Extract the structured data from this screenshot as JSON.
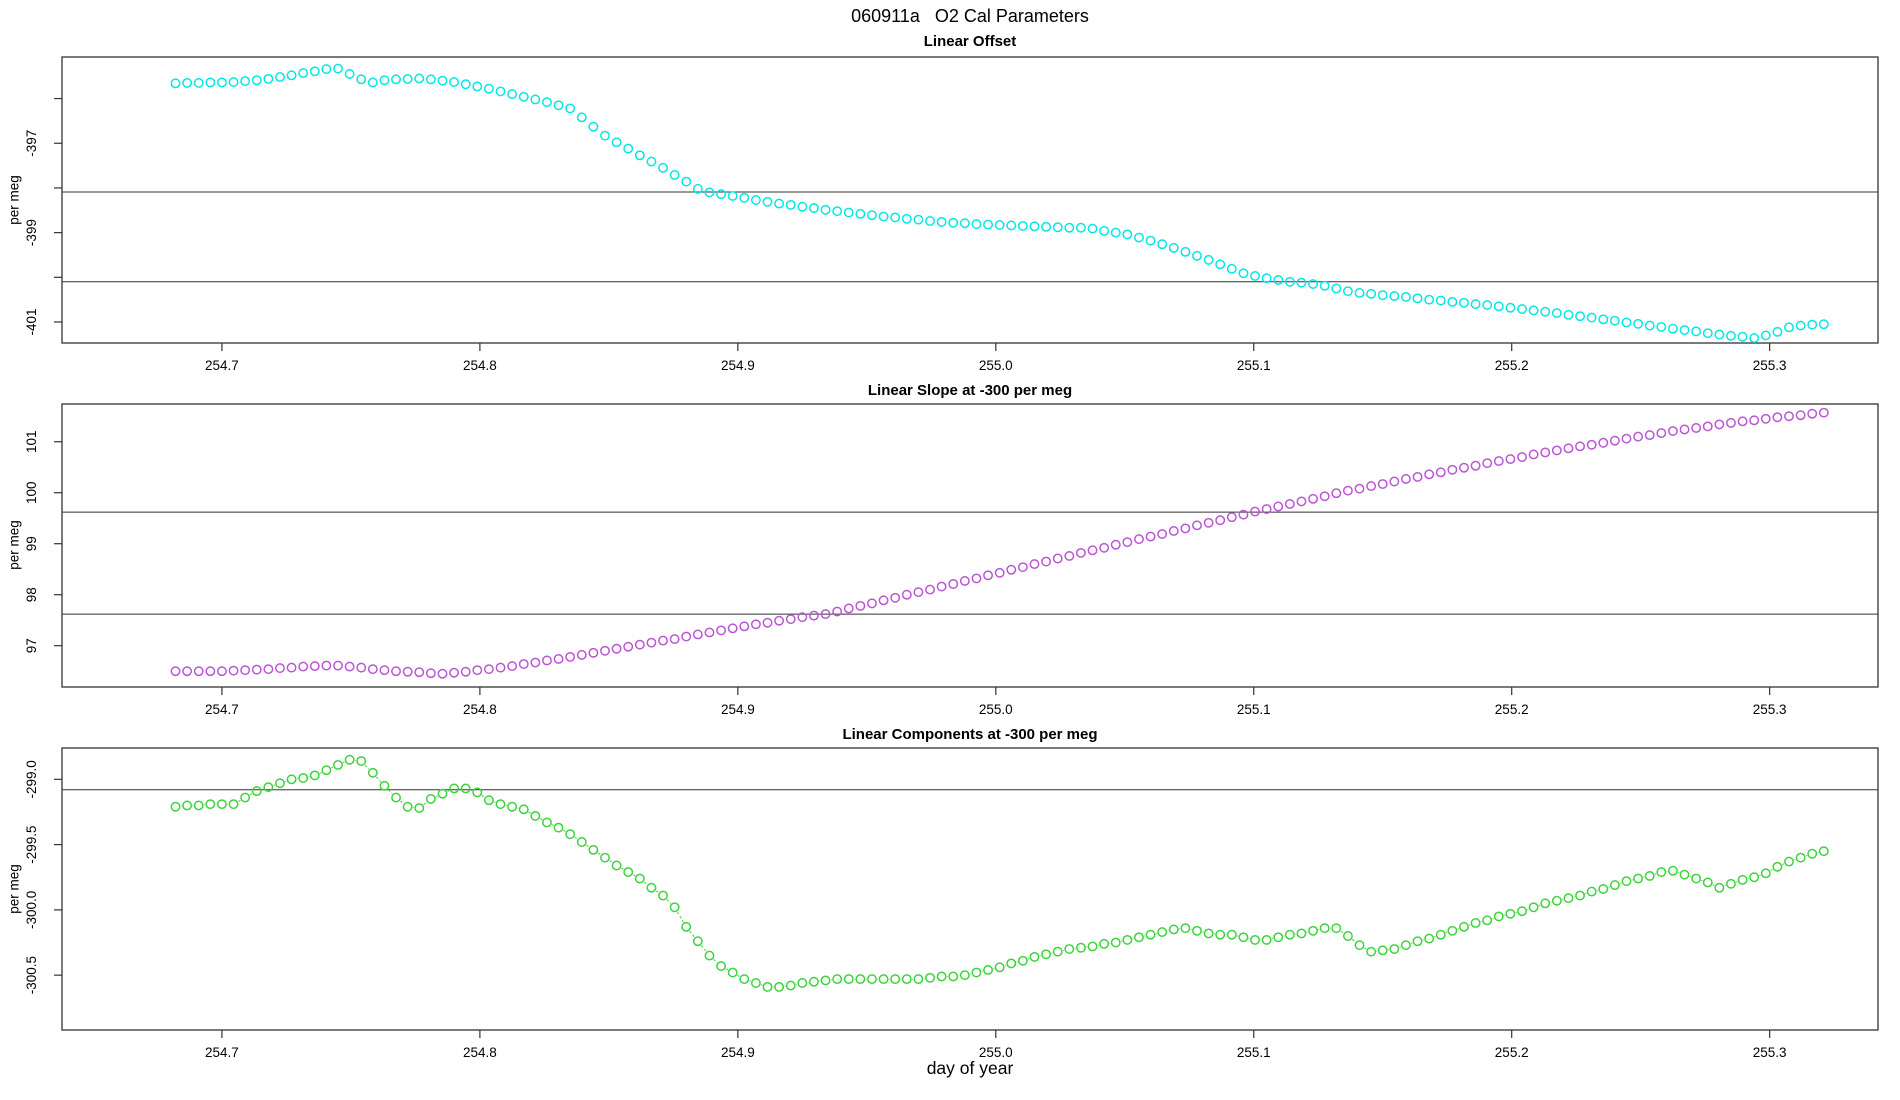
{
  "page": {
    "title": "060911a   O2 Cal Parameters"
  },
  "chart_data": {
    "type": "scatter",
    "layout": "three-stacked-panels",
    "xlabel": "day of year",
    "x_ticks": [
      254.7,
      254.8,
      254.9,
      255.0,
      255.1,
      255.2,
      255.3
    ],
    "x_tick_labels": [
      "254.7",
      "254.8",
      "254.9",
      "255.0",
      "255.1",
      "255.2",
      "255.3"
    ],
    "xlim": [
      254.638,
      255.342
    ],
    "x": [
      254.682,
      254.6865,
      254.691,
      254.6955,
      254.7,
      254.7045,
      254.709,
      254.7135,
      254.718,
      254.7225,
      254.727,
      254.7315,
      254.736,
      254.7405,
      254.745,
      254.7495,
      254.754,
      254.7585,
      254.763,
      254.7675,
      254.772,
      254.7765,
      254.781,
      254.7855,
      254.79,
      254.7945,
      254.799,
      254.8035,
      254.808,
      254.8125,
      254.817,
      254.8215,
      254.826,
      254.8305,
      254.835,
      254.8395,
      254.844,
      254.8485,
      254.853,
      254.8575,
      254.862,
      254.8665,
      254.871,
      254.8755,
      254.88,
      254.8845,
      254.889,
      254.8935,
      254.898,
      254.9025,
      254.907,
      254.9115,
      254.916,
      254.9205,
      254.925,
      254.9295,
      254.934,
      254.9385,
      254.943,
      254.9475,
      254.952,
      254.9565,
      254.961,
      254.9655,
      254.97,
      254.9745,
      254.979,
      254.9835,
      254.988,
      254.9925,
      254.997,
      255.0015,
      255.006,
      255.0105,
      255.015,
      255.0195,
      255.024,
      255.0285,
      255.033,
      255.0375,
      255.042,
      255.0465,
      255.051,
      255.0555,
      255.06,
      255.0645,
      255.069,
      255.0735,
      255.078,
      255.0825,
      255.087,
      255.0915,
      255.096,
      255.1005,
      255.105,
      255.1095,
      255.114,
      255.1185,
      255.123,
      255.1275,
      255.132,
      255.1365,
      255.141,
      255.1455,
      255.15,
      255.1545,
      255.159,
      255.1635,
      255.168,
      255.1725,
      255.177,
      255.1815,
      255.186,
      255.1905,
      255.195,
      255.1995,
      255.204,
      255.2085,
      255.213,
      255.2175,
      255.222,
      255.2265,
      255.231,
      255.2355,
      255.24,
      255.2445,
      255.249,
      255.2535,
      255.258,
      255.2625,
      255.267,
      255.2715,
      255.276,
      255.2805,
      255.285,
      255.2895,
      255.294,
      255.2985,
      255.303,
      255.3075,
      255.312,
      255.3165,
      255.321
    ],
    "panels": [
      {
        "title": "Linear Offset",
        "ylabel": "per meg",
        "marker": "open-circle",
        "color": "#00E8E8",
        "ylim": [
          -401.47,
          -395.07
        ],
        "yticks": [
          -401,
          -400,
          -399,
          -398,
          -397,
          -396
        ],
        "ytick_labels": [
          "-401",
          "",
          "-399",
          "",
          "-397",
          ""
        ],
        "ref_lines": [
          -398.09,
          -400.1
        ],
        "connect": false,
        "y": [
          -395.66,
          -395.65,
          -395.65,
          -395.64,
          -395.64,
          -395.63,
          -395.61,
          -395.59,
          -395.56,
          -395.52,
          -395.48,
          -395.43,
          -395.39,
          -395.34,
          -395.33,
          -395.45,
          -395.57,
          -395.64,
          -395.59,
          -395.57,
          -395.56,
          -395.55,
          -395.57,
          -395.6,
          -395.63,
          -395.68,
          -395.73,
          -395.78,
          -395.84,
          -395.9,
          -395.96,
          -396.02,
          -396.08,
          -396.15,
          -396.22,
          -396.42,
          -396.63,
          -396.83,
          -396.98,
          -397.12,
          -397.27,
          -397.41,
          -397.55,
          -397.71,
          -397.86,
          -398.02,
          -398.1,
          -398.14,
          -398.18,
          -398.22,
          -398.27,
          -398.31,
          -398.35,
          -398.38,
          -398.42,
          -398.45,
          -398.49,
          -398.52,
          -398.55,
          -398.58,
          -398.61,
          -398.64,
          -398.66,
          -398.69,
          -398.71,
          -398.74,
          -398.76,
          -398.78,
          -398.79,
          -398.81,
          -398.82,
          -398.83,
          -398.84,
          -398.85,
          -398.86,
          -398.87,
          -398.88,
          -398.89,
          -398.89,
          -398.91,
          -398.96,
          -399.0,
          -399.04,
          -399.11,
          -399.18,
          -399.26,
          -399.34,
          -399.43,
          -399.52,
          -399.61,
          -399.71,
          -399.81,
          -399.91,
          -399.97,
          -400.02,
          -400.06,
          -400.1,
          -400.12,
          -400.15,
          -400.19,
          -400.25,
          -400.31,
          -400.35,
          -400.37,
          -400.4,
          -400.42,
          -400.44,
          -400.47,
          -400.5,
          -400.52,
          -400.55,
          -400.57,
          -400.6,
          -400.62,
          -400.65,
          -400.68,
          -400.71,
          -400.74,
          -400.77,
          -400.8,
          -400.84,
          -400.87,
          -400.9,
          -400.94,
          -400.97,
          -401.01,
          -401.04,
          -401.08,
          -401.11,
          -401.15,
          -401.18,
          -401.21,
          -401.25,
          -401.28,
          -401.31,
          -401.33,
          -401.36,
          -401.3,
          -401.22,
          -401.12,
          -401.08,
          -401.06,
          -401.05
        ]
      },
      {
        "title": "Linear Slope at -300 per meg",
        "ylabel": "per meg",
        "marker": "open-circle",
        "color": "#BA55D3",
        "ylim": [
          96.19,
          101.74
        ],
        "yticks": [
          97,
          98,
          99,
          100,
          101
        ],
        "ytick_labels": [
          "97",
          "98",
          "99",
          "100",
          "101"
        ],
        "ref_lines": [
          99.62,
          97.62
        ],
        "connect": false,
        "y": [
          96.5,
          96.5,
          96.5,
          96.5,
          96.5,
          96.51,
          96.52,
          96.53,
          96.54,
          96.56,
          96.57,
          96.59,
          96.6,
          96.61,
          96.61,
          96.59,
          96.57,
          96.54,
          96.52,
          96.5,
          96.49,
          96.48,
          96.46,
          96.45,
          96.47,
          96.49,
          96.52,
          96.54,
          96.57,
          96.6,
          96.64,
          96.67,
          96.71,
          96.74,
          96.78,
          96.82,
          96.86,
          96.9,
          96.94,
          96.98,
          97.02,
          97.06,
          97.1,
          97.13,
          97.18,
          97.22,
          97.26,
          97.3,
          97.34,
          97.38,
          97.42,
          97.45,
          97.49,
          97.52,
          97.56,
          97.59,
          97.62,
          97.67,
          97.73,
          97.78,
          97.83,
          97.89,
          97.94,
          98.0,
          98.05,
          98.1,
          98.16,
          98.21,
          98.27,
          98.32,
          98.38,
          98.43,
          98.49,
          98.54,
          98.6,
          98.65,
          98.71,
          98.76,
          98.82,
          98.87,
          98.92,
          98.98,
          99.03,
          99.09,
          99.14,
          99.19,
          99.25,
          99.3,
          99.36,
          99.41,
          99.46,
          99.52,
          99.57,
          99.63,
          99.68,
          99.73,
          99.78,
          99.83,
          99.88,
          99.93,
          99.99,
          100.04,
          100.08,
          100.13,
          100.17,
          100.22,
          100.27,
          100.31,
          100.36,
          100.4,
          100.45,
          100.49,
          100.53,
          100.58,
          100.62,
          100.66,
          100.7,
          100.75,
          100.79,
          100.83,
          100.87,
          100.91,
          100.94,
          100.98,
          101.02,
          101.06,
          101.1,
          101.13,
          101.17,
          101.21,
          101.24,
          101.27,
          101.3,
          101.34,
          101.37,
          101.4,
          101.42,
          101.45,
          101.48,
          101.5,
          101.52,
          101.55,
          101.57
        ]
      },
      {
        "title": "Linear Components at -300 per meg",
        "ylabel": "per meg",
        "marker": "open-circle",
        "color": "#3BD43B",
        "ylim": [
          -300.92,
          -298.76
        ],
        "yticks": [
          -300.5,
          -300.0,
          -299.5,
          -299.0
        ],
        "ytick_labels": [
          "-300.5",
          "-300.0",
          "-299.5",
          "-299.0"
        ],
        "ref_lines": [
          -299.08
        ],
        "connect": true,
        "y": [
          -299.21,
          -299.2,
          -299.2,
          -299.19,
          -299.19,
          -299.19,
          -299.14,
          -299.09,
          -299.06,
          -299.03,
          -299.0,
          -298.99,
          -298.97,
          -298.93,
          -298.89,
          -298.85,
          -298.86,
          -298.95,
          -299.05,
          -299.14,
          -299.21,
          -299.22,
          -299.15,
          -299.11,
          -299.07,
          -299.07,
          -299.1,
          -299.16,
          -299.19,
          -299.21,
          -299.23,
          -299.28,
          -299.33,
          -299.37,
          -299.42,
          -299.48,
          -299.54,
          -299.6,
          -299.66,
          -299.71,
          -299.76,
          -299.83,
          -299.89,
          -299.98,
          -300.13,
          -300.24,
          -300.35,
          -300.43,
          -300.48,
          -300.53,
          -300.56,
          -300.59,
          -300.59,
          -300.58,
          -300.56,
          -300.55,
          -300.54,
          -300.53,
          -300.53,
          -300.53,
          -300.53,
          -300.53,
          -300.53,
          -300.53,
          -300.53,
          -300.52,
          -300.51,
          -300.51,
          -300.5,
          -300.48,
          -300.46,
          -300.44,
          -300.41,
          -300.39,
          -300.36,
          -300.34,
          -300.32,
          -300.3,
          -300.29,
          -300.28,
          -300.26,
          -300.25,
          -300.23,
          -300.21,
          -300.19,
          -300.17,
          -300.15,
          -300.14,
          -300.16,
          -300.18,
          -300.19,
          -300.19,
          -300.21,
          -300.23,
          -300.23,
          -300.21,
          -300.19,
          -300.18,
          -300.16,
          -300.14,
          -300.14,
          -300.2,
          -300.27,
          -300.32,
          -300.31,
          -300.3,
          -300.27,
          -300.24,
          -300.22,
          -300.19,
          -300.16,
          -300.13,
          -300.1,
          -300.08,
          -300.05,
          -300.03,
          -300.01,
          -299.98,
          -299.95,
          -299.93,
          -299.91,
          -299.89,
          -299.86,
          -299.84,
          -299.81,
          -299.78,
          -299.76,
          -299.74,
          -299.71,
          -299.7,
          -299.73,
          -299.76,
          -299.79,
          -299.83,
          -299.8,
          -299.77,
          -299.75,
          -299.72,
          -299.67,
          -299.63,
          -299.6,
          -299.57,
          -299.55
        ]
      }
    ]
  }
}
